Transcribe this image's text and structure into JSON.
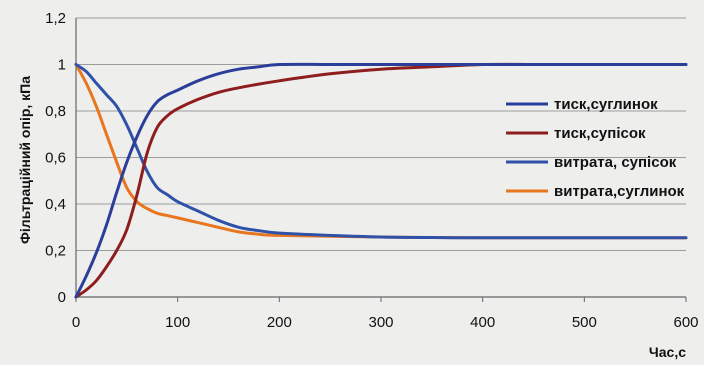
{
  "chart_data": {
    "type": "line",
    "xlabel": "Час,с",
    "ylabel": "Фільтраційний опір, кПа",
    "xlim": [
      0,
      600
    ],
    "ylim": [
      0,
      1.2
    ],
    "x_ticks": [
      "0",
      "100",
      "200",
      "300",
      "400",
      "500",
      "600"
    ],
    "y_ticks": [
      "0",
      "0,2",
      "0,4",
      "0,6",
      "0,8",
      "1",
      "1,2"
    ],
    "grid": true,
    "legend_position": "right",
    "series": [
      {
        "name": "тиск,суглинок",
        "color": "#2b3f9a",
        "x": [
          0,
          10,
          20,
          30,
          40,
          50,
          60,
          70,
          80,
          90,
          100,
          120,
          140,
          160,
          180,
          200,
          250,
          300,
          400,
          500,
          600
        ],
        "y": [
          0,
          0.09,
          0.19,
          0.31,
          0.45,
          0.58,
          0.69,
          0.78,
          0.84,
          0.87,
          0.89,
          0.93,
          0.96,
          0.98,
          0.99,
          1.0,
          1.0,
          1.0,
          1.0,
          1.0,
          1.0
        ]
      },
      {
        "name": "тиск,супісок",
        "color": "#8e1e1e",
        "x": [
          0,
          10,
          20,
          30,
          40,
          50,
          60,
          70,
          80,
          90,
          100,
          120,
          140,
          160,
          200,
          250,
          300,
          350,
          400,
          450,
          500,
          600
        ],
        "y": [
          0,
          0.03,
          0.07,
          0.13,
          0.2,
          0.29,
          0.44,
          0.62,
          0.73,
          0.78,
          0.81,
          0.85,
          0.88,
          0.9,
          0.93,
          0.96,
          0.98,
          0.99,
          1.0,
          1.0,
          1.0,
          1.0
        ]
      },
      {
        "name": "витрата, супісок",
        "color": "#2f52a8",
        "x": [
          0,
          10,
          20,
          30,
          40,
          50,
          60,
          70,
          80,
          90,
          100,
          120,
          140,
          160,
          180,
          200,
          250,
          300,
          350,
          400,
          600
        ],
        "y": [
          1.0,
          0.97,
          0.92,
          0.87,
          0.82,
          0.74,
          0.64,
          0.54,
          0.47,
          0.44,
          0.41,
          0.37,
          0.33,
          0.3,
          0.285,
          0.275,
          0.265,
          0.258,
          0.256,
          0.255,
          0.255
        ]
      },
      {
        "name": "витрата,суглинок",
        "color": "#e8761f",
        "x": [
          0,
          10,
          20,
          30,
          40,
          50,
          60,
          70,
          80,
          90,
          100,
          120,
          140,
          160,
          180,
          200,
          300,
          400,
          600
        ],
        "y": [
          1.0,
          0.92,
          0.82,
          0.7,
          0.58,
          0.47,
          0.41,
          0.38,
          0.36,
          0.35,
          0.34,
          0.32,
          0.3,
          0.28,
          0.27,
          0.265,
          0.258,
          0.255,
          0.255
        ]
      }
    ]
  }
}
